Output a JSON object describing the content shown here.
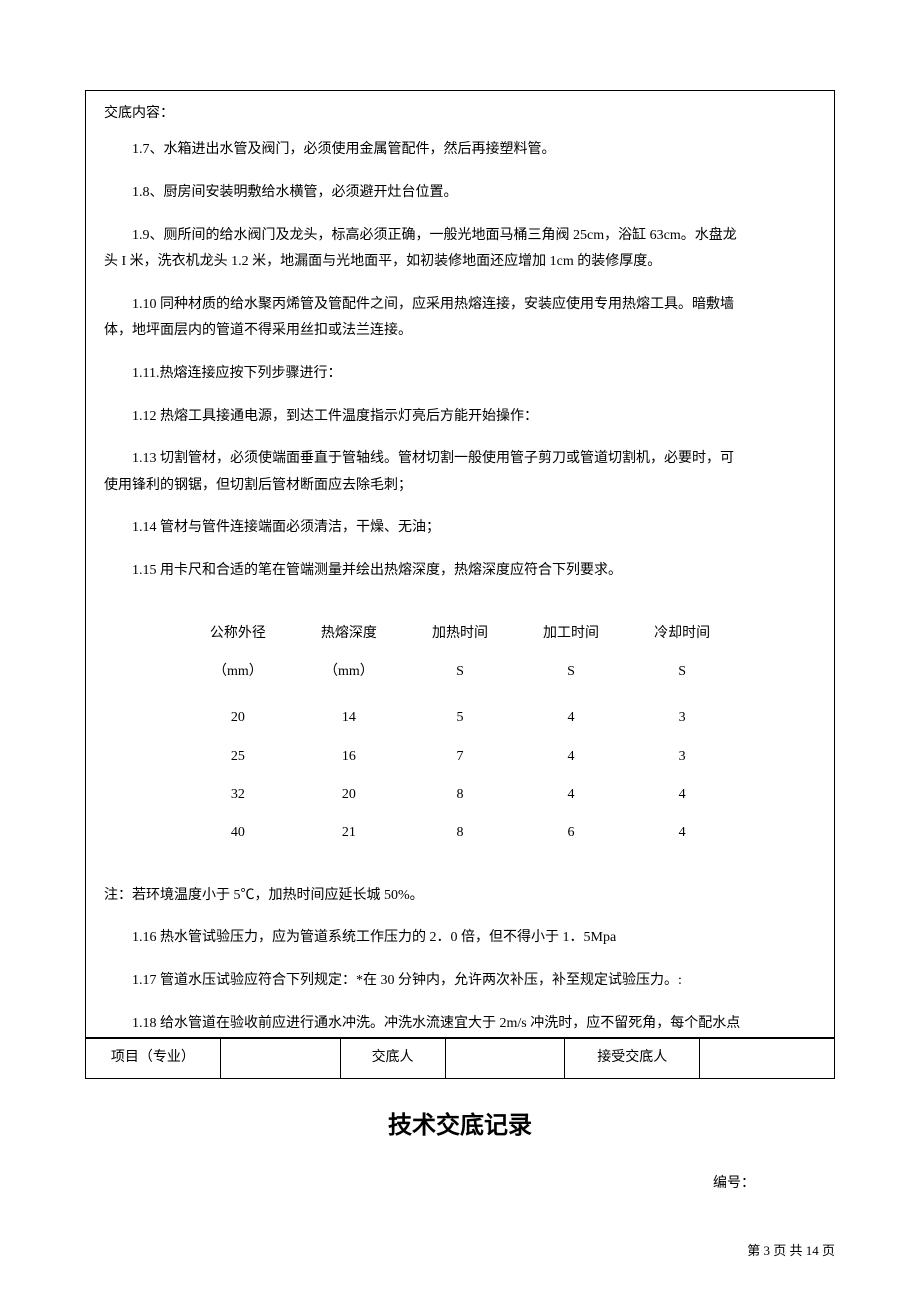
{
  "content_header": "交底内容：",
  "paragraphs": {
    "p17": "1.7、水箱进出水管及阀门，必须使用金属管配件，然后再接塑料管。",
    "p18": "1.8、厨房间安装明敷给水横管，必须避开灶台位置。",
    "p19a": "1.9、厕所间的给水阀门及龙头，标高必须正确，一般光地面马桶三角阀 25cm，浴缸 63cm。水盘龙",
    "p19b": "头 I 米，洗衣机龙头 1.2 米，地漏面与光地面平，如初装修地面还应增加 1cm 的装修厚度。",
    "p110a": "1.10 同种材质的给水聚丙烯管及管配件之间，应采用热熔连接，安装应使用专用热熔工具。暗敷墙",
    "p110b": "体，地坪面层内的管道不得采用丝扣或法兰连接。",
    "p111": "1.11.热熔连接应按下列步骤进行：",
    "p112": "1.12 热熔工具接通电源，到达工件温度指示灯亮后方能开始操作：",
    "p113a": "1.13 切割管材，必须使端面垂直于管轴线。管材切割一般使用管子剪刀或管道切割机，必要时，可",
    "p113b": "使用锋利的钢锯，但切割后管材断面应去除毛刺；",
    "p114": "1.14 管材与管件连接端面必须清洁，干燥、无油；",
    "p115": "1.15 用卡尺和合适的笔在管端测量并绘出热熔深度，热熔深度应符合下列要求。"
  },
  "table": {
    "headers": [
      "公称外径",
      "热熔深度",
      "加热时间",
      "加工时间",
      "冷却时间"
    ],
    "units": [
      "（mm）",
      "（mm）",
      "S",
      "S",
      "S"
    ],
    "rows": [
      [
        "20",
        "14",
        "5",
        "4",
        "3"
      ],
      [
        "25",
        "16",
        "7",
        "4",
        "3"
      ],
      [
        "32",
        "20",
        "8",
        "4",
        "4"
      ],
      [
        "40",
        "21",
        "8",
        "6",
        "4"
      ]
    ]
  },
  "note": "注：若环境温度小于 5℃，加热时间应延长城 50%。",
  "p116": "1.16 热水管试验压力，应为管道系统工作压力的 2．0 倍，但不得小于 1．5Mpa",
  "p117": "1.17 管道水压试验应符合下列规定：*在 30 分钟内，允许两次补压，补至规定试验压力。:",
  "p118": "1.18 给水管道在验收前应进行通水冲洗。冲洗水流速宜大于 2m/s 冲洗时，应不留死角，每个配水点",
  "sig_table": {
    "col1_label": "项目（专业）",
    "col3_label": "交底人",
    "col5_label": "接受交底人"
  },
  "title": "技术交底记录",
  "serial": "编号：",
  "footer": "第 3 页 共 14 页",
  "colors": {
    "text": "#000000",
    "background": "#ffffff",
    "border": "#000000"
  }
}
